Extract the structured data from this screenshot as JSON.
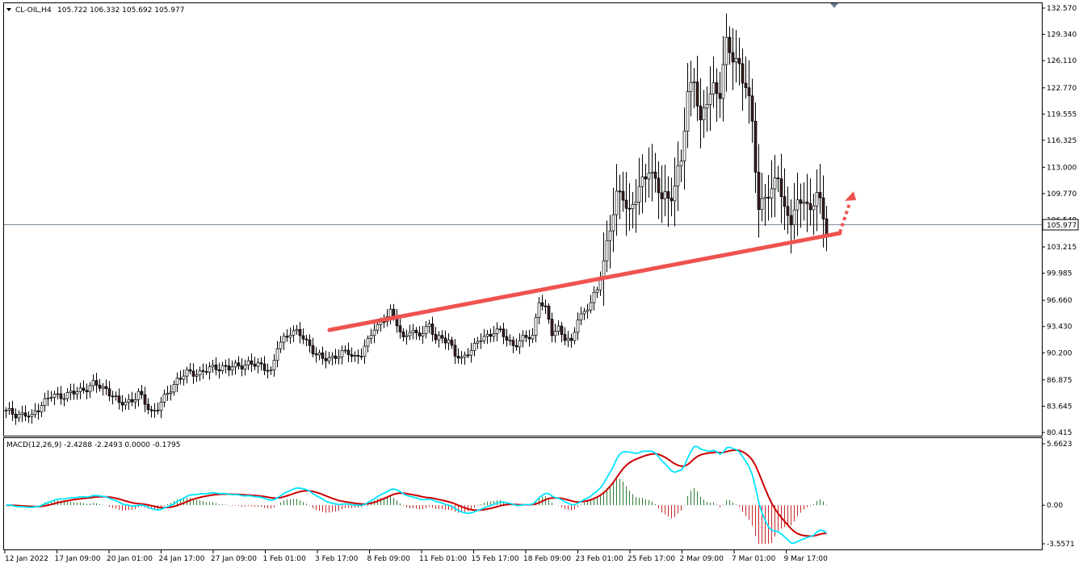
{
  "header": {
    "symbol": "CL-OIL,H4",
    "ohlc": "105.722 106.332 105.692 105.977"
  },
  "macd_header": {
    "label": "MACD(12,26,9) -2.4288 -2.2493 0.0000 -0.1795"
  },
  "price_axis": {
    "ticks": [
      "132.570",
      "129.340",
      "126.110",
      "122.770",
      "119.555",
      "116.325",
      "113.000",
      "109.770",
      "106.540",
      "103.215",
      "99.985",
      "96.660",
      "93.430",
      "90.200",
      "86.875",
      "83.645",
      "80.415"
    ],
    "current_price": "105.977"
  },
  "macd_axis": {
    "ticks": [
      "5.6623",
      "0.00",
      "-3.5571"
    ]
  },
  "time_axis": {
    "ticks": [
      "12 Jan 2022",
      "17 Jan 09:00",
      "20 Jan 01:00",
      "24 Jan 17:00",
      "27 Jan 09:00",
      "1 Feb 01:00",
      "3 Feb 17:00",
      "8 Feb 09:00",
      "11 Feb 01:00",
      "15 Feb 17:00",
      "18 Feb 09:00",
      "23 Feb 01:00",
      "25 Feb 17:00",
      "2 Mar 09:00",
      "7 Mar 01:00",
      "9 Mar 17:00"
    ]
  },
  "colors": {
    "trendline": "#ef5350",
    "macd_line": "#00e5ff",
    "signal_line": "#cc0000",
    "hist_pos": "#2e7d32",
    "hist_neg": "#c62828",
    "candle_up": "#ffffff",
    "candle_down": "#3b1f1f"
  },
  "chart_data": {
    "type": "candlestick",
    "symbol": "CL-OIL",
    "timeframe": "H4",
    "ylim": [
      80.415,
      132.57
    ],
    "close_points": [
      [
        0,
        82.9
      ],
      [
        4,
        82.7
      ],
      [
        6,
        82.5
      ],
      [
        8,
        82.2
      ],
      [
        9,
        83.0
      ],
      [
        11,
        84.0
      ],
      [
        14,
        84.8
      ],
      [
        17,
        85.0
      ],
      [
        21,
        85.2
      ],
      [
        24,
        85.8
      ],
      [
        27,
        86.3
      ],
      [
        29,
        86.0
      ],
      [
        31,
        85.8
      ],
      [
        33,
        85.0
      ],
      [
        35,
        83.8
      ],
      [
        37,
        84.2
      ],
      [
        39,
        84.5
      ],
      [
        41,
        85.1
      ],
      [
        43,
        84.0
      ],
      [
        45,
        83.0
      ],
      [
        47,
        83.5
      ],
      [
        49,
        84.5
      ],
      [
        51,
        85.8
      ],
      [
        53,
        87.0
      ],
      [
        56,
        87.6
      ],
      [
        59,
        87.8
      ],
      [
        62,
        88.0
      ],
      [
        65,
        88.4
      ],
      [
        67,
        88.6
      ],
      [
        69,
        88.2
      ],
      [
        71,
        88.5
      ],
      [
        73,
        88.8
      ],
      [
        75,
        88.9
      ],
      [
        77,
        88.6
      ],
      [
        79,
        88.7
      ],
      [
        81,
        88.4
      ],
      [
        82,
        87.8
      ],
      [
        83,
        89.0
      ],
      [
        84,
        90.8
      ],
      [
        86,
        92.0
      ],
      [
        88,
        92.9
      ],
      [
        90,
        92.6
      ],
      [
        92,
        92.0
      ],
      [
        94,
        91.2
      ],
      [
        96,
        90.0
      ],
      [
        98,
        89.3
      ],
      [
        100,
        89.6
      ],
      [
        102,
        89.9
      ],
      [
        104,
        90.0
      ],
      [
        106,
        90.2
      ],
      [
        108,
        89.8
      ],
      [
        110,
        90.1
      ],
      [
        112,
        91.4
      ],
      [
        114,
        93.4
      ],
      [
        116,
        94.0
      ],
      [
        118,
        94.6
      ],
      [
        119,
        95.0
      ],
      [
        121,
        94.0
      ],
      [
        123,
        92.0
      ],
      [
        125,
        92.8
      ],
      [
        127,
        92.3
      ],
      [
        129,
        93.0
      ],
      [
        131,
        93.6
      ],
      [
        133,
        91.6
      ],
      [
        135,
        92.2
      ],
      [
        137,
        91.8
      ],
      [
        139,
        89.8
      ],
      [
        141,
        89.3
      ],
      [
        143,
        90.5
      ],
      [
        145,
        91.0
      ],
      [
        147,
        91.8
      ],
      [
        149,
        92.3
      ],
      [
        151,
        93.0
      ],
      [
        153,
        92.7
      ],
      [
        155,
        91.8
      ],
      [
        157,
        91.3
      ],
      [
        159,
        91.6
      ],
      [
        161,
        92.0
      ],
      [
        163,
        92.3
      ],
      [
        165,
        96.8
      ],
      [
        167,
        95.4
      ],
      [
        169,
        92.6
      ],
      [
        171,
        93.4
      ],
      [
        173,
        92.0
      ],
      [
        175,
        91.2
      ],
      [
        177,
        94.6
      ],
      [
        179,
        95.3
      ],
      [
        181,
        96.2
      ],
      [
        183,
        97.9
      ],
      [
        185,
        101.8
      ],
      [
        187,
        105.5
      ],
      [
        189,
        109.0
      ],
      [
        191,
        110.0
      ],
      [
        193,
        107.5
      ],
      [
        195,
        109.0
      ],
      [
        197,
        111.0
      ],
      [
        199,
        113.5
      ],
      [
        201,
        111.0
      ],
      [
        203,
        109.0
      ],
      [
        205,
        109.4
      ],
      [
        207,
        111.0
      ],
      [
        209,
        113.5
      ],
      [
        211,
        121.8
      ],
      [
        213,
        124.6
      ],
      [
        215,
        118.0
      ],
      [
        217,
        121.0
      ],
      [
        219,
        123.0
      ],
      [
        221,
        122.5
      ],
      [
        223,
        127.8
      ],
      [
        225,
        126.4
      ],
      [
        227,
        125.9
      ],
      [
        229,
        122.8
      ],
      [
        231,
        118.2
      ],
      [
        233,
        108.0
      ],
      [
        235,
        110.0
      ],
      [
        237,
        109.3
      ],
      [
        239,
        112.2
      ],
      [
        241,
        108.0
      ],
      [
        243,
        106.5
      ],
      [
        245,
        107.8
      ],
      [
        247,
        109.8
      ],
      [
        249,
        107.5
      ],
      [
        251,
        109.8
      ],
      [
        253,
        106.4
      ],
      [
        254,
        105.977
      ]
    ],
    "annotations": [
      {
        "type": "trendline",
        "label": ""
      },
      {
        "type": "dotted-arrow",
        "direction": "up-right"
      }
    ],
    "macd": {
      "params": "12,26,9",
      "main": -2.4288,
      "signal": -2.2493,
      "histogram": -0.1795,
      "ylim": [
        -3.5571,
        5.6623
      ]
    }
  }
}
